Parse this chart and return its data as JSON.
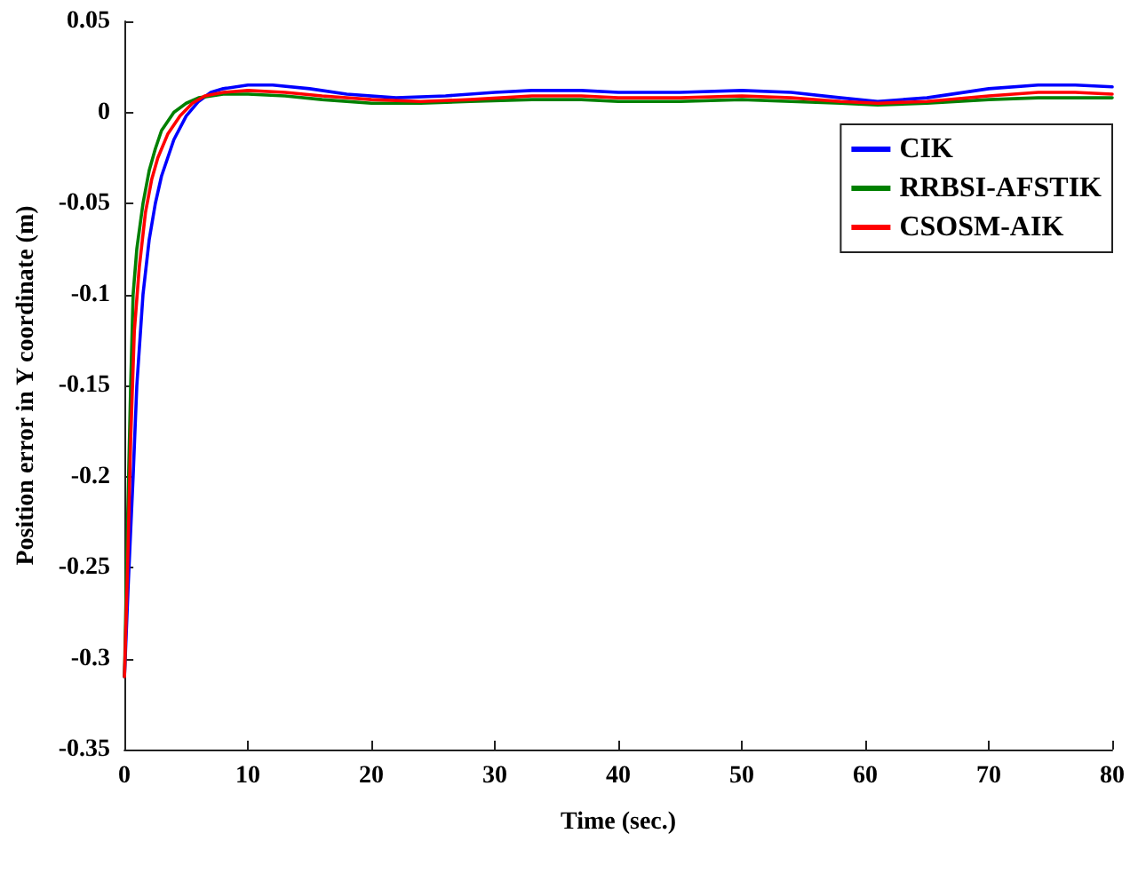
{
  "chart_data": {
    "type": "line",
    "xlabel": "Time (sec.)",
    "ylabel": "Position error in Y coordinate (m)",
    "xlim": [
      0,
      80
    ],
    "xticks": [
      0,
      10,
      20,
      30,
      40,
      50,
      60,
      70,
      80
    ],
    "ylim": [
      -0.35,
      0.05
    ],
    "yticks": [
      -0.35,
      -0.3,
      -0.25,
      -0.2,
      -0.15,
      -0.1,
      -0.05,
      0,
      0.05
    ],
    "grid": false,
    "legend": "top right",
    "marker": "none",
    "line_style": "solid",
    "series": [
      {
        "name": "CIK",
        "color": "#0000ff",
        "x": [
          0,
          0.3,
          0.7,
          1,
          1.5,
          2,
          2.5,
          3,
          4,
          5,
          6,
          7,
          8,
          10,
          12,
          15,
          18,
          22,
          26,
          30,
          33,
          37,
          40,
          45,
          50,
          54,
          58,
          61,
          65,
          70,
          74,
          77,
          80
        ],
        "values": [
          -0.31,
          -0.26,
          -0.2,
          -0.15,
          -0.1,
          -0.07,
          -0.05,
          -0.035,
          -0.015,
          -0.002,
          0.006,
          0.011,
          0.013,
          0.015,
          0.015,
          0.013,
          0.01,
          0.008,
          0.009,
          0.011,
          0.012,
          0.012,
          0.011,
          0.011,
          0.012,
          0.011,
          0.008,
          0.006,
          0.008,
          0.013,
          0.015,
          0.015,
          0.014
        ]
      },
      {
        "name": "RRBSI-AFSTIK",
        "color": "#008000",
        "x": [
          0,
          0.2,
          0.5,
          0.7,
          1,
          1.5,
          2,
          2.5,
          3,
          4,
          5,
          6,
          8,
          10,
          13,
          16,
          20,
          24,
          28,
          33,
          37,
          40,
          45,
          50,
          54,
          58,
          61,
          65,
          70,
          74,
          77,
          80
        ],
        "values": [
          -0.31,
          -0.24,
          -0.15,
          -0.1,
          -0.075,
          -0.05,
          -0.032,
          -0.02,
          -0.01,
          0,
          0.005,
          0.008,
          0.01,
          0.01,
          0.009,
          0.007,
          0.005,
          0.005,
          0.006,
          0.007,
          0.007,
          0.006,
          0.006,
          0.007,
          0.006,
          0.005,
          0.004,
          0.005,
          0.007,
          0.008,
          0.008,
          0.008
        ]
      },
      {
        "name": "CSOSM-AIK",
        "color": "#ff0000",
        "x": [
          0,
          0.25,
          0.5,
          0.8,
          1.2,
          1.7,
          2.2,
          2.7,
          3.5,
          4.5,
          5.5,
          6.5,
          8,
          10,
          13,
          16,
          20,
          24,
          28,
          33,
          37,
          40,
          45,
          50,
          54,
          58,
          61,
          65,
          70,
          74,
          77,
          80
        ],
        "values": [
          -0.31,
          -0.25,
          -0.18,
          -0.12,
          -0.085,
          -0.055,
          -0.037,
          -0.025,
          -0.012,
          -0.002,
          0.005,
          0.009,
          0.011,
          0.012,
          0.011,
          0.009,
          0.007,
          0.006,
          0.007,
          0.009,
          0.009,
          0.008,
          0.008,
          0.009,
          0.008,
          0.006,
          0.005,
          0.006,
          0.009,
          0.011,
          0.011,
          0.01
        ]
      }
    ]
  }
}
